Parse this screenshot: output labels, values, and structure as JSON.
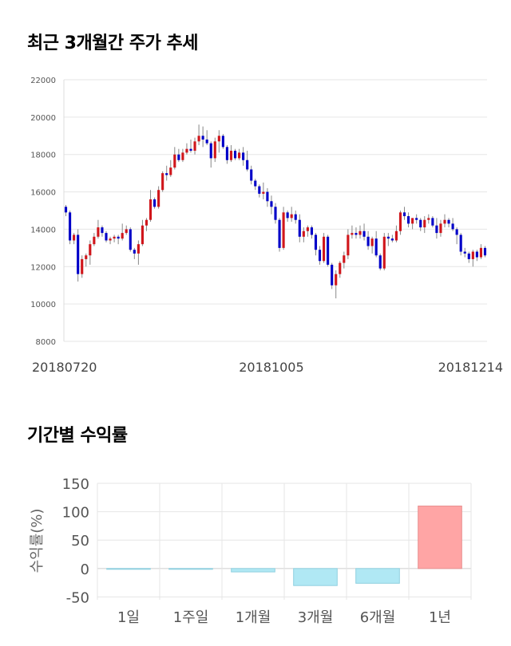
{
  "titles": {
    "price_trend": "최근 3개월간 주가 추세",
    "period_returns": "기간별 수익률"
  },
  "colors": {
    "up": "#d0161b",
    "down": "#0000c8",
    "wick": "#888888",
    "grid": "#e6e6e6",
    "bar_positive": "#ffa5a5",
    "bar_negative": "#b0e8f4"
  },
  "chart_data": [
    {
      "type": "candlestick",
      "title": "최근 3개월간 주가 추세",
      "y_ticks": [
        8000,
        10000,
        12000,
        14000,
        16000,
        18000,
        20000,
        22000
      ],
      "ylim": [
        8000,
        22000
      ],
      "x_tick_labels": [
        {
          "index": 0,
          "label": "20180720"
        },
        {
          "index": 51,
          "label": "20181005"
        },
        {
          "index": 104,
          "label": "20181214"
        }
      ],
      "grid": true,
      "ohlc": [
        [
          15200,
          15300,
          14700,
          14900
        ],
        [
          14900,
          15000,
          13200,
          13400
        ],
        [
          13400,
          13800,
          13200,
          13700
        ],
        [
          13700,
          14000,
          11200,
          11600
        ],
        [
          11600,
          12600,
          11400,
          12400
        ],
        [
          12400,
          12700,
          12000,
          12600
        ],
        [
          12600,
          13400,
          12100,
          13200
        ],
        [
          13200,
          13800,
          13100,
          13600
        ],
        [
          13600,
          14500,
          13500,
          14100
        ],
        [
          14100,
          14200,
          13600,
          13800
        ],
        [
          13800,
          13900,
          13300,
          13400
        ],
        [
          13400,
          13600,
          13200,
          13500
        ],
        [
          13500,
          13700,
          13300,
          13600
        ],
        [
          13600,
          13700,
          13200,
          13500
        ],
        [
          13500,
          14300,
          13400,
          13800
        ],
        [
          13800,
          14200,
          13700,
          14000
        ],
        [
          14000,
          14100,
          12800,
          12900
        ],
        [
          12900,
          13000,
          12400,
          12700
        ],
        [
          12700,
          13400,
          12100,
          13200
        ],
        [
          13200,
          14500,
          13100,
          14200
        ],
        [
          14200,
          14600,
          13900,
          14500
        ],
        [
          14500,
          16100,
          14400,
          15600
        ],
        [
          15600,
          15700,
          15100,
          15200
        ],
        [
          15200,
          16300,
          15100,
          16100
        ],
        [
          16100,
          17100,
          16000,
          17000
        ],
        [
          17000,
          17400,
          16600,
          16900
        ],
        [
          16900,
          17700,
          16800,
          17300
        ],
        [
          17300,
          18400,
          17200,
          18000
        ],
        [
          18000,
          18300,
          17600,
          17700
        ],
        [
          17700,
          18300,
          17600,
          18100
        ],
        [
          18100,
          18600,
          18000,
          18300
        ],
        [
          18300,
          18800,
          18100,
          18200
        ],
        [
          18200,
          18900,
          18000,
          18700
        ],
        [
          18700,
          19600,
          18500,
          19000
        ],
        [
          19000,
          19500,
          18400,
          18800
        ],
        [
          18800,
          19300,
          18500,
          18600
        ],
        [
          18600,
          18700,
          17300,
          17800
        ],
        [
          17800,
          18900,
          17600,
          18700
        ],
        [
          18700,
          19300,
          18100,
          19000
        ],
        [
          19000,
          19100,
          18300,
          18400
        ],
        [
          18400,
          18500,
          17500,
          17700
        ],
        [
          17700,
          18500,
          17600,
          18200
        ],
        [
          18200,
          18300,
          17700,
          17800
        ],
        [
          17800,
          18300,
          17700,
          18100
        ],
        [
          18100,
          18400,
          17400,
          17700
        ],
        [
          17700,
          18200,
          17100,
          17200
        ],
        [
          17200,
          17400,
          16400,
          16600
        ],
        [
          16600,
          16700,
          16100,
          16300
        ],
        [
          16300,
          16400,
          15700,
          15900
        ],
        [
          15900,
          16500,
          15600,
          16000
        ],
        [
          16000,
          16200,
          15200,
          15500
        ],
        [
          15500,
          15800,
          14800,
          15200
        ],
        [
          15200,
          15400,
          14300,
          14500
        ],
        [
          14500,
          14600,
          12800,
          13000
        ],
        [
          13000,
          15200,
          12900,
          14900
        ],
        [
          14900,
          15000,
          14400,
          14600
        ],
        [
          14600,
          15200,
          14400,
          14800
        ],
        [
          14800,
          15000,
          14300,
          14500
        ],
        [
          14500,
          14800,
          13300,
          13600
        ],
        [
          13600,
          14100,
          13300,
          13900
        ],
        [
          13900,
          14200,
          13600,
          14100
        ],
        [
          14100,
          14200,
          13500,
          13700
        ],
        [
          13700,
          13800,
          12600,
          12900
        ],
        [
          12900,
          13100,
          12100,
          12300
        ],
        [
          12300,
          13800,
          12200,
          13600
        ],
        [
          13600,
          13700,
          12000,
          12100
        ],
        [
          12100,
          12200,
          10800,
          11000
        ],
        [
          11000,
          11800,
          10300,
          11600
        ],
        [
          11600,
          12300,
          11400,
          12200
        ],
        [
          12200,
          12800,
          11900,
          12600
        ],
        [
          12600,
          14000,
          12400,
          13700
        ],
        [
          13700,
          14200,
          13500,
          13800
        ],
        [
          13800,
          14100,
          13500,
          13700
        ],
        [
          13700,
          14200,
          13500,
          13900
        ],
        [
          13900,
          14300,
          13400,
          13600
        ],
        [
          13600,
          13900,
          12900,
          13100
        ],
        [
          13100,
          13600,
          12700,
          13500
        ],
        [
          13500,
          13900,
          12500,
          12600
        ],
        [
          12600,
          12700,
          11800,
          11900
        ],
        [
          11900,
          13800,
          11800,
          13600
        ],
        [
          13600,
          13800,
          13100,
          13500
        ],
        [
          13500,
          13700,
          13300,
          13400
        ],
        [
          13400,
          14200,
          13300,
          13900
        ],
        [
          13900,
          15000,
          13700,
          14900
        ],
        [
          14900,
          15200,
          14500,
          14700
        ],
        [
          14700,
          14900,
          14100,
          14300
        ],
        [
          14300,
          14600,
          14000,
          14600
        ],
        [
          14600,
          14800,
          14300,
          14500
        ],
        [
          14500,
          14600,
          13900,
          14100
        ],
        [
          14100,
          14700,
          13800,
          14500
        ],
        [
          14500,
          14800,
          14300,
          14600
        ],
        [
          14600,
          14700,
          14100,
          14200
        ],
        [
          14200,
          14600,
          13500,
          13800
        ],
        [
          13800,
          14500,
          13600,
          14300
        ],
        [
          14300,
          14800,
          14100,
          14500
        ],
        [
          14500,
          14600,
          14100,
          14300
        ],
        [
          14300,
          14600,
          13900,
          14000
        ],
        [
          14000,
          14100,
          13200,
          13700
        ],
        [
          13700,
          13800,
          12600,
          12800
        ],
        [
          12800,
          13000,
          12500,
          12700
        ],
        [
          12700,
          12800,
          12200,
          12400
        ],
        [
          12400,
          12900,
          12000,
          12800
        ],
        [
          12800,
          12900,
          12300,
          12500
        ],
        [
          12500,
          13200,
          12400,
          13000
        ],
        [
          13000,
          13100,
          12500,
          12600
        ]
      ]
    },
    {
      "type": "bar",
      "title": "기간별 수익률",
      "ylabel": "수익률(%)",
      "categories": [
        "1일",
        "1주일",
        "1개월",
        "3개월",
        "6개월",
        "1년"
      ],
      "values": [
        0,
        -1,
        -6,
        -30,
        -26,
        110
      ],
      "y_ticks": [
        150,
        100,
        50,
        0,
        -50
      ],
      "ylim": [
        -55,
        150
      ],
      "grid": true
    }
  ]
}
